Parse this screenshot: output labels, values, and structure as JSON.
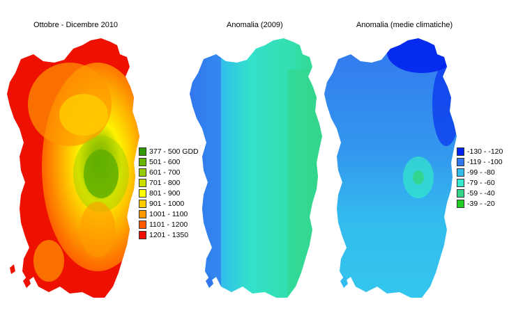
{
  "panels": [
    {
      "title": "Ottobre - Dicembre 2010"
    },
    {
      "title": "Anomalia (2009)"
    },
    {
      "title": "Anomalia (medie climatiche)"
    }
  ],
  "legend_gdd": [
    {
      "label": "377 - 500 GDD",
      "color": "#339900"
    },
    {
      "label": "501 - 600",
      "color": "#66b300"
    },
    {
      "label": "601 - 700",
      "color": "#99cc00"
    },
    {
      "label": "701 - 800",
      "color": "#ccdd00"
    },
    {
      "label": "801 - 900",
      "color": "#ffff00"
    },
    {
      "label": "901 - 1000",
      "color": "#ffcc00"
    },
    {
      "label": "1001 - 1100",
      "color": "#ff9900"
    },
    {
      "label": "1101 - 1200",
      "color": "#ff5a00"
    },
    {
      "label": "1201 - 1350",
      "color": "#ee1100"
    }
  ],
  "legend_anomaly": [
    {
      "label": "-130 - -120",
      "color": "#0022ee"
    },
    {
      "label": "-119 - -100",
      "color": "#3377ee"
    },
    {
      "label": "-99 - -80",
      "color": "#33bbee"
    },
    {
      "label": "-79 - -60",
      "color": "#33e8cc"
    },
    {
      "label": "-59 - -40",
      "color": "#33d68a"
    },
    {
      "label": "-39 - -20",
      "color": "#22cc22"
    }
  ]
}
